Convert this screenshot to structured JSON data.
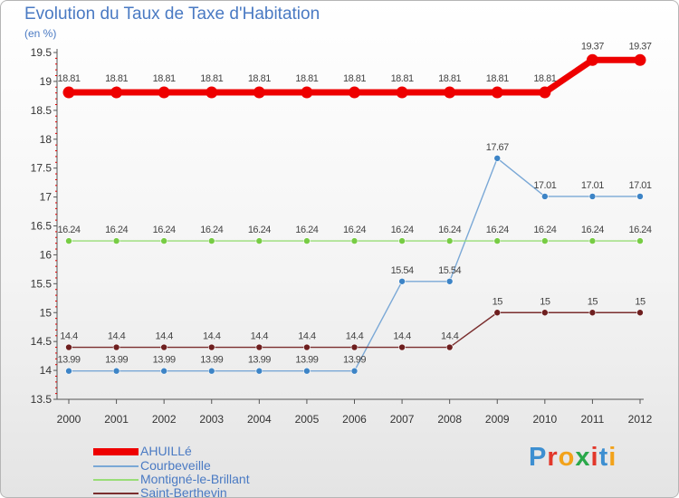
{
  "title": "Evolution du Taux de Taxe d'Habitation",
  "subtitle": "(en %)",
  "brand": {
    "letters": [
      {
        "ch": "P",
        "color": "#3d8fd1"
      },
      {
        "ch": "r",
        "color": "#e2372a"
      },
      {
        "ch": "o",
        "color": "#f2a21a"
      },
      {
        "ch": "x",
        "color": "#2aa84a"
      },
      {
        "ch": "i",
        "color": "#e2372a"
      },
      {
        "ch": "t",
        "color": "#3d8fd1"
      },
      {
        "ch": "i",
        "color": "#f2a21a"
      }
    ]
  },
  "chart_data": {
    "type": "line",
    "title": "Evolution du Taux de Taxe d'Habitation",
    "ylabel": "(en %)",
    "xlabel": "",
    "x": [
      "2000",
      "2001",
      "2002",
      "2003",
      "2004",
      "2005",
      "2006",
      "2007",
      "2008",
      "2009",
      "2010",
      "2011",
      "2012"
    ],
    "ylim": [
      13.5,
      19.5
    ],
    "yticks": [
      13.5,
      14,
      14.5,
      15,
      15.5,
      16,
      16.5,
      17,
      17.5,
      18,
      18.5,
      19,
      19.5
    ],
    "ytick_labels": [
      "13.5",
      "14",
      "14.5",
      "15",
      "15.5",
      "16",
      "16.5",
      "17",
      "17.5",
      "18",
      "18.5",
      "19",
      "19.5"
    ],
    "grid": false,
    "legend": "bottom-left",
    "series": [
      {
        "name": "AHUILLé",
        "color": "#ee0000",
        "marker": "#ee0000",
        "width": 7,
        "r": 6.5,
        "values": [
          18.81,
          18.81,
          18.81,
          18.81,
          18.81,
          18.81,
          18.81,
          18.81,
          18.81,
          18.81,
          18.81,
          19.37,
          19.37
        ],
        "labels": [
          "18.81",
          "18.81",
          "18.81",
          "18.81",
          "18.81",
          "18.81",
          "18.81",
          "18.81",
          "18.81",
          "18.81",
          "18.81",
          "19.37",
          "19.37"
        ]
      },
      {
        "name": "Courbeveille",
        "color": "#7aa8d6",
        "marker": "#3d84c6",
        "width": 1.4,
        "r": 3.5,
        "values": [
          13.99,
          13.99,
          13.99,
          13.99,
          13.99,
          13.99,
          13.99,
          15.54,
          15.54,
          17.67,
          17.01,
          17.01,
          17.01
        ],
        "labels": [
          "13.99",
          "13.99",
          "13.99",
          "13.99",
          "13.99",
          "13.99",
          "13.99",
          "15.54",
          "15.54",
          "17.67",
          "17.01",
          "17.01",
          "17.01"
        ]
      },
      {
        "name": "Montigné-le-Brillant",
        "color": "#99dd77",
        "marker": "#77cc44",
        "width": 1.4,
        "r": 3.5,
        "values": [
          16.24,
          16.24,
          16.24,
          16.24,
          16.24,
          16.24,
          16.24,
          16.24,
          16.24,
          16.24,
          16.24,
          16.24,
          16.24
        ],
        "labels": [
          "16.24",
          "16.24",
          "16.24",
          "16.24",
          "16.24",
          "16.24",
          "16.24",
          "16.24",
          "16.24",
          "16.24",
          "16.24",
          "16.24",
          "16.24"
        ]
      },
      {
        "name": "Saint-Berthevin",
        "color": "#7a2e2e",
        "marker": "#6e1f1f",
        "width": 1.4,
        "r": 3.5,
        "values": [
          14.4,
          14.4,
          14.4,
          14.4,
          14.4,
          14.4,
          14.4,
          14.4,
          14.4,
          15,
          15,
          15,
          15
        ],
        "labels": [
          "14.4",
          "14.4",
          "14.4",
          "14.4",
          "14.4",
          "14.4",
          "14.4",
          "14.4",
          "14.4",
          "15",
          "15",
          "15",
          "15"
        ]
      }
    ]
  }
}
